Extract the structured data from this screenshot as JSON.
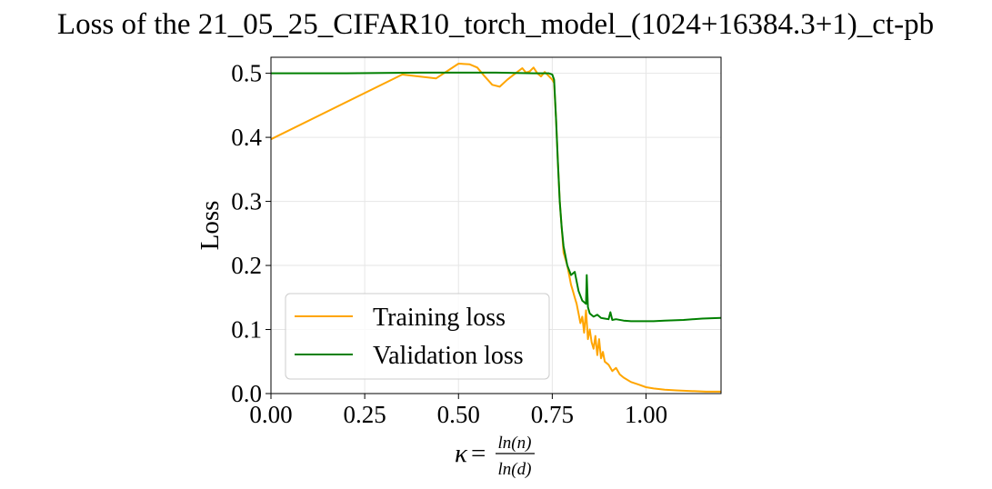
{
  "chart_data": {
    "type": "line",
    "title": "Loss of the 21_05_25_CIFAR10_torch_model_(1024+16384.3+1)_ct-pb",
    "xlabel": {
      "symbol": "κ",
      "equals": "=",
      "numerator": "ln(n)",
      "denominator": "ln(d)"
    },
    "ylabel": "Loss",
    "xlim": [
      0.0,
      1.2
    ],
    "ylim": [
      0.0,
      0.525
    ],
    "xticks": [
      0.0,
      0.25,
      0.5,
      0.75,
      1.0
    ],
    "xtick_labels": [
      "0.00",
      "0.25",
      "0.50",
      "0.75",
      "1.00"
    ],
    "yticks": [
      0.0,
      0.1,
      0.2,
      0.3,
      0.4,
      0.5
    ],
    "ytick_labels": [
      "0.0",
      "0.1",
      "0.2",
      "0.3",
      "0.4",
      "0.5"
    ],
    "grid": true,
    "legend_position": "lower-left",
    "series": [
      {
        "name": "Training loss",
        "color": "#ffa500",
        "x": [
          0.0,
          0.35,
          0.44,
          0.5,
          0.53,
          0.55,
          0.57,
          0.59,
          0.61,
          0.63,
          0.65,
          0.67,
          0.68,
          0.69,
          0.7,
          0.71,
          0.72,
          0.73,
          0.74,
          0.75,
          0.755,
          0.76,
          0.765,
          0.77,
          0.775,
          0.78,
          0.79,
          0.8,
          0.805,
          0.81,
          0.815,
          0.82,
          0.825,
          0.83,
          0.835,
          0.84,
          0.845,
          0.85,
          0.855,
          0.86,
          0.865,
          0.87,
          0.875,
          0.88,
          0.885,
          0.89,
          0.9,
          0.91,
          0.92,
          0.93,
          0.94,
          0.96,
          0.98,
          1.0,
          1.02,
          1.05,
          1.08,
          1.12,
          1.16,
          1.2
        ],
        "y": [
          0.397,
          0.498,
          0.492,
          0.515,
          0.514,
          0.509,
          0.495,
          0.482,
          0.479,
          0.49,
          0.499,
          0.508,
          0.501,
          0.503,
          0.509,
          0.5,
          0.495,
          0.502,
          0.496,
          0.49,
          0.485,
          0.43,
          0.36,
          0.3,
          0.26,
          0.22,
          0.2,
          0.17,
          0.16,
          0.15,
          0.14,
          0.125,
          0.11,
          0.12,
          0.095,
          0.13,
          0.085,
          0.1,
          0.08,
          0.07,
          0.09,
          0.06,
          0.085,
          0.055,
          0.065,
          0.05,
          0.045,
          0.035,
          0.04,
          0.03,
          0.025,
          0.018,
          0.014,
          0.01,
          0.008,
          0.006,
          0.005,
          0.004,
          0.003,
          0.003
        ]
      },
      {
        "name": "Validation loss",
        "color": "#008000",
        "x": [
          0.0,
          0.2,
          0.4,
          0.6,
          0.7,
          0.74,
          0.75,
          0.755,
          0.76,
          0.765,
          0.77,
          0.775,
          0.78,
          0.79,
          0.8,
          0.81,
          0.815,
          0.82,
          0.83,
          0.84,
          0.842,
          0.845,
          0.85,
          0.86,
          0.87,
          0.88,
          0.89,
          0.9,
          0.905,
          0.91,
          0.92,
          0.94,
          0.96,
          0.98,
          1.0,
          1.02,
          1.05,
          1.1,
          1.15,
          1.2
        ],
        "y": [
          0.5,
          0.5,
          0.501,
          0.501,
          0.5,
          0.5,
          0.498,
          0.49,
          0.43,
          0.36,
          0.3,
          0.26,
          0.23,
          0.2,
          0.185,
          0.19,
          0.175,
          0.16,
          0.145,
          0.14,
          0.185,
          0.135,
          0.125,
          0.12,
          0.123,
          0.118,
          0.117,
          0.116,
          0.127,
          0.115,
          0.116,
          0.114,
          0.113,
          0.113,
          0.113,
          0.113,
          0.114,
          0.115,
          0.117,
          0.118
        ]
      }
    ]
  }
}
